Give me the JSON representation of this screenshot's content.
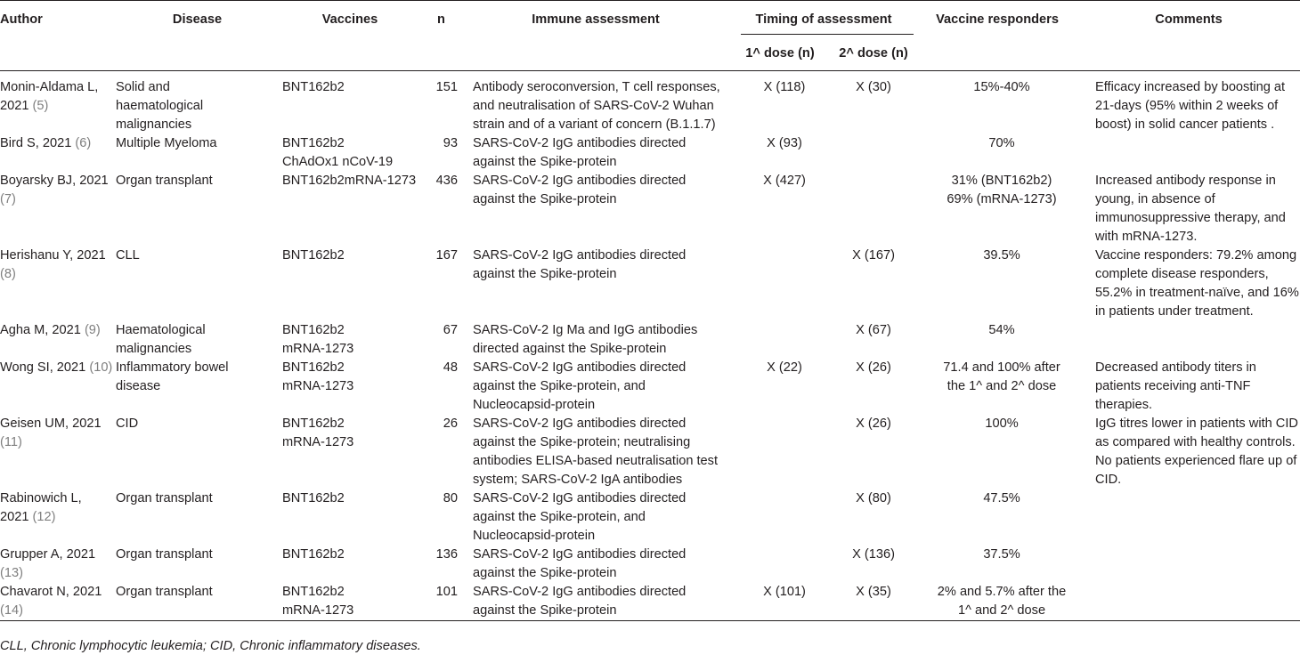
{
  "headers": {
    "author": "Author",
    "disease": "Disease",
    "vaccines": "Vaccines",
    "n": "n",
    "immune": "Immune assessment",
    "timing": "Timing of assessment",
    "dose1": "1^ dose (n)",
    "dose2": "2^ dose (n)",
    "responders": "Vaccine responders",
    "comments": "Comments"
  },
  "rows": [
    {
      "author_l1": "Monin-Aldama L,",
      "author_l2": "2021 ",
      "ref": "(5)",
      "disease": "Solid and haematological malignancies",
      "vaccines_l1": "BNT162b2",
      "vaccines_l2": "",
      "n": "151",
      "immune": "Antibody seroconversion, T cell responses, and neutralisation of SARS-CoV-2 Wuhan strain and of a variant of concern (B.1.1.7)",
      "dose1": "X (118)",
      "dose2": "X (30)",
      "resp_l1": "15%-40%",
      "resp_l2": "",
      "comments": "Efficacy increased by boosting at 21-days (95% within 2 weeks of boost) in solid cancer patients ."
    },
    {
      "author_l1": "Bird S, 2021 ",
      "author_l2": "",
      "ref": "(6)",
      "disease": "Multiple Myeloma",
      "vaccines_l1": "BNT162b2",
      "vaccines_l2": "ChAdOx1 nCoV-19",
      "n": "93",
      "immune": "SARS-CoV-2 IgG antibodies directed against the Spike-protein",
      "dose1": "X (93)",
      "dose2": "",
      "resp_l1": "70%",
      "resp_l2": "",
      "comments": ""
    },
    {
      "author_l1": "Boyarsky BJ, 2021",
      "author_l2": "",
      "ref": "(7)",
      "disease": "Organ transplant",
      "vaccines_l1": "BNT162b2mRNA-1273",
      "vaccines_l2": "",
      "n": "436",
      "immune": "SARS-CoV-2 IgG antibodies directed against the Spike-protein",
      "dose1": "X (427)",
      "dose2": "",
      "resp_l1": "31% (BNT162b2)",
      "resp_l2": "69% (mRNA-1273)",
      "comments": "Increased antibody response in young, in absence of immunosuppressive therapy, and with mRNA-1273."
    },
    {
      "author_l1": "Herishanu Y, 2021",
      "author_l2": "",
      "ref": "(8)",
      "disease": "CLL",
      "vaccines_l1": "BNT162b2",
      "vaccines_l2": "",
      "n": "167",
      "immune": "SARS-CoV-2 IgG antibodies directed against the Spike-protein",
      "dose1": "",
      "dose2": "X (167)",
      "resp_l1": "39.5%",
      "resp_l2": "",
      "comments": "Vaccine responders: 79.2% among complete disease responders, 55.2% in treatment-naïve, and 16% in patients under treatment."
    },
    {
      "author_l1": "Agha M, 2021 ",
      "author_l2": "",
      "ref": "(9)",
      "disease": "Haematological malignancies",
      "vaccines_l1": "BNT162b2",
      "vaccines_l2": "mRNA-1273",
      "n": "67",
      "immune": "SARS-CoV-2 Ig Ma and IgG antibodies directed against the Spike-protein",
      "dose1": "",
      "dose2": "X (67)",
      "resp_l1": "54%",
      "resp_l2": "",
      "comments": ""
    },
    {
      "author_l1": "Wong SI, 2021 ",
      "author_l2": "",
      "ref": "(10)",
      "disease": "Inflammatory bowel disease",
      "vaccines_l1": "BNT162b2",
      "vaccines_l2": "mRNA-1273",
      "n": "48",
      "immune": "SARS-CoV-2 IgG antibodies directed against the Spike-protein, and Nucleocapsid-protein",
      "dose1": "X (22)",
      "dose2": "X (26)",
      "resp_l1": "71.4 and 100% after",
      "resp_l2": "the 1^ and 2^ dose",
      "comments": "Decreased antibody titers in patients receiving anti-TNF therapies."
    },
    {
      "author_l1": "Geisen UM, 2021",
      "author_l2": "",
      "ref": "(11)",
      "disease": "CID",
      "vaccines_l1": "BNT162b2",
      "vaccines_l2": "mRNA-1273",
      "n": "26",
      "immune": "SARS-CoV-2 IgG antibodies directed against the Spike-protein; neutralising antibodies ELISA-based neutralisation test system; SARS-CoV-2 IgA antibodies",
      "dose1": "",
      "dose2": "X (26)",
      "resp_l1": "100%",
      "resp_l2": "",
      "comments": "IgG titres lower in patients with CID as compared with healthy controls. No patients experienced flare up of CID."
    },
    {
      "author_l1": "Rabinowich L,",
      "author_l2": "2021 ",
      "ref": "(12)",
      "disease": "Organ transplant",
      "vaccines_l1": "BNT162b2",
      "vaccines_l2": "",
      "n": "80",
      "immune": "SARS-CoV-2 IgG antibodies directed against the Spike-protein, and Nucleocapsid-protein",
      "dose1": "",
      "dose2": "X (80)",
      "resp_l1": "47.5%",
      "resp_l2": "",
      "comments": ""
    },
    {
      "author_l1": "Grupper A, 2021",
      "author_l2": "",
      "ref": "(13)",
      "disease": "Organ transplant",
      "vaccines_l1": "BNT162b2",
      "vaccines_l2": "",
      "n": "136",
      "immune": "SARS-CoV-2 IgG antibodies directed against the Spike-protein",
      "dose1": "",
      "dose2": "X (136)",
      "resp_l1": "37.5%",
      "resp_l2": "",
      "comments": ""
    },
    {
      "author_l1": "Chavarot N, 2021",
      "author_l2": "",
      "ref": "(14)",
      "disease": "Organ transplant",
      "vaccines_l1": "BNT162b2",
      "vaccines_l2": "mRNA-1273",
      "n": "101",
      "immune": "SARS-CoV-2 IgG antibodies directed against the Spike-protein",
      "dose1": "X (101)",
      "dose2": "X (35)",
      "resp_l1": "2% and 5.7% after the",
      "resp_l2": "1^ and 2^ dose",
      "comments": ""
    }
  ],
  "footnote": "CLL, Chronic lymphocytic leukemia; CID, Chronic inflammatory diseases."
}
